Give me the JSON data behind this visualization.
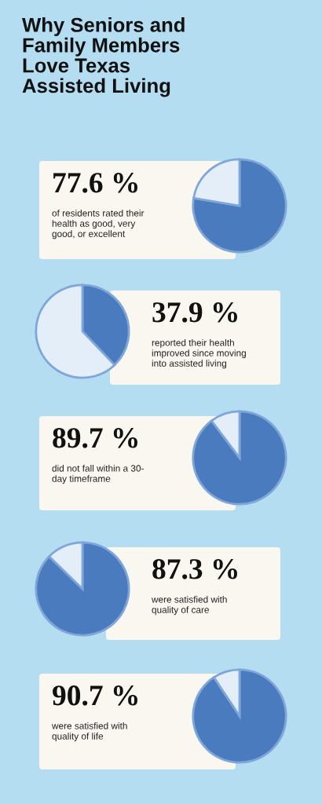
{
  "chart_data": [
    {
      "type": "pie",
      "title": "Why Seniors and\nFamily Members\nLove Texas\nAssisted Living",
      "categories": [
        null,
        null
      ],
      "values": [
        77.6,
        22.4
      ],
      "colors": [
        "#4a7bbf",
        "#e3eef8"
      ],
      "annotations": [
        "77.6 %",
        "of residents rated their\nhealth as good, very\ngood, or excellent"
      ]
    },
    {
      "type": "pie",
      "categories": [
        null,
        null
      ],
      "values": [
        37.9,
        62.1
      ],
      "colors": [
        "#4a7bbf",
        "#e3eef8"
      ],
      "annotations": [
        "37.9 %",
        "reported their health\nimproved since moving\ninto assisted living"
      ]
    },
    {
      "type": "pie",
      "categories": [
        null,
        null
      ],
      "values": [
        89.7,
        10.3
      ],
      "colors": [
        "#4a7bbf",
        "#e3eef8"
      ],
      "annotations": [
        "89.7 %",
        "did not fall within a 30-\nday timeframe"
      ]
    },
    {
      "type": "pie",
      "categories": [
        null,
        null
      ],
      "values": [
        87.3,
        12.7
      ],
      "colors": [
        "#4a7bbf",
        "#e3eef8"
      ],
      "annotations": [
        "87.3 %",
        "were satisfied with\nquality of care"
      ]
    },
    {
      "type": "pie",
      "categories": [
        null,
        null
      ],
      "values": [
        90.7,
        9.3
      ],
      "colors": [
        "#4a7bbf",
        "#e3eef8"
      ],
      "annotations": [
        "90.7 %",
        "were satisfied with\nquality of life"
      ]
    }
  ]
}
